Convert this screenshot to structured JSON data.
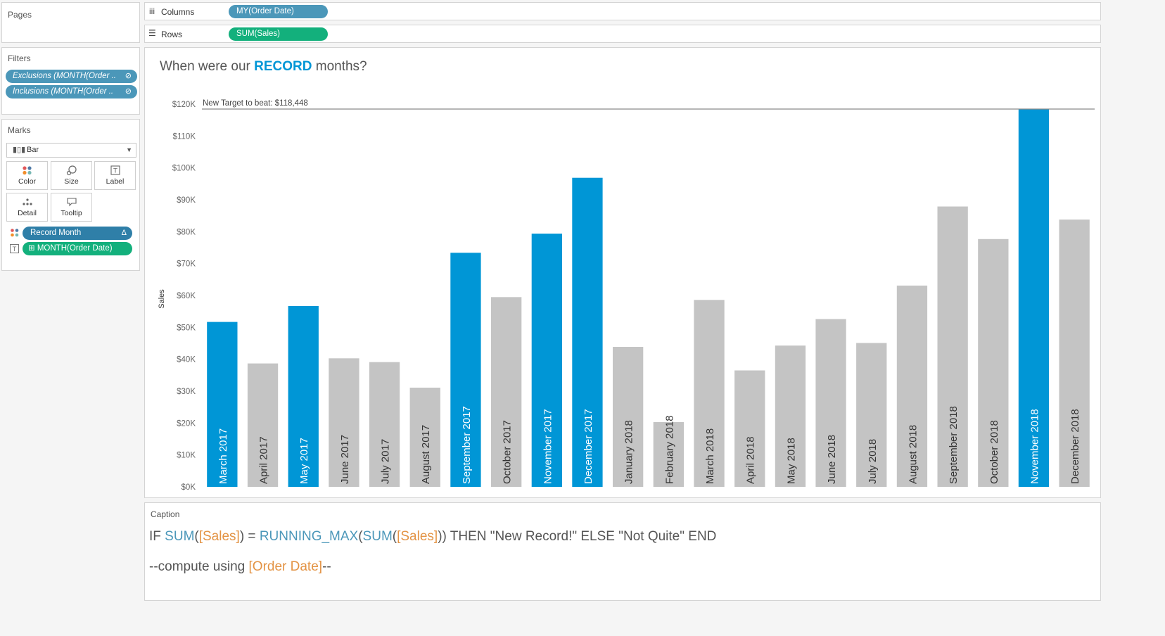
{
  "shelves": {
    "pages_label": "Pages",
    "columns_label": "Columns",
    "columns_pill": "MY(Order Date)",
    "rows_label": "Rows",
    "rows_pill": "SUM(Sales)",
    "columns_icon": "columns-shelf-icon",
    "rows_icon": "rows-shelf-icon"
  },
  "filters": {
    "title": "Filters",
    "items": [
      {
        "label": "Exclusions (MONTH(Order ..",
        "icon": "link-icon"
      },
      {
        "label": "Inclusions (MONTH(Order ..",
        "icon": "link-icon"
      }
    ]
  },
  "marks": {
    "title": "Marks",
    "mark_type": "Bar",
    "buttons": [
      {
        "label": "Color",
        "icon": "color-dots-icon"
      },
      {
        "label": "Size",
        "icon": "size-icon"
      },
      {
        "label": "Label",
        "icon": "label-icon"
      },
      {
        "label": "Detail",
        "icon": "detail-icon"
      },
      {
        "label": "Tooltip",
        "icon": "tooltip-icon"
      }
    ],
    "fields": [
      {
        "label": "Record Month",
        "badge": "Δ",
        "color": "#2f7fa8"
      },
      {
        "label": "MONTH(Order Date)",
        "badge": "⊞",
        "color": "#13b07c"
      }
    ]
  },
  "sheet": {
    "title_prefix": "When were our ",
    "title_accent": "RECORD",
    "title_suffix": " months?"
  },
  "caption": {
    "title": "Caption",
    "line1": [
      {
        "t": "IF ",
        "k": "plain"
      },
      {
        "t": "SUM",
        "k": "fn"
      },
      {
        "t": "(",
        "k": "plain"
      },
      {
        "t": "[Sales]",
        "k": "field"
      },
      {
        "t": ") = ",
        "k": "plain"
      },
      {
        "t": "RUNNING_MAX",
        "k": "fn"
      },
      {
        "t": "(",
        "k": "plain"
      },
      {
        "t": "SUM",
        "k": "fn"
      },
      {
        "t": "(",
        "k": "plain"
      },
      {
        "t": "[Sales]",
        "k": "field"
      },
      {
        "t": ")) THEN \"New Record!\" ELSE \"Not Quite\" END",
        "k": "plain"
      }
    ],
    "line2": [
      {
        "t": "--compute using ",
        "k": "plain"
      },
      {
        "t": "[Order Date]",
        "k": "field"
      },
      {
        "t": "--",
        "k": "plain"
      }
    ]
  },
  "colors": {
    "record": "#0096d6",
    "not_record": "#c4c4c4",
    "caption_function": "#4b97b9",
    "caption_field": "#e39344"
  },
  "chart_data": {
    "type": "bar",
    "ylabel": "Sales",
    "ylim": [
      0,
      120000
    ],
    "yticks": [
      0,
      10000,
      20000,
      30000,
      40000,
      50000,
      60000,
      70000,
      80000,
      90000,
      100000,
      110000,
      120000
    ],
    "ytick_labels": [
      "$0K",
      "$10K",
      "$20K",
      "$30K",
      "$40K",
      "$50K",
      "$60K",
      "$70K",
      "$80K",
      "$90K",
      "$100K",
      "$110K",
      "$120K"
    ],
    "reference_line": {
      "value": 118448,
      "label": "New Target to beat: $118,448"
    },
    "grid": false,
    "categories": [
      "March 2017",
      "April 2017",
      "May 2017",
      "June 2017",
      "July 2017",
      "August 2017",
      "September 2017",
      "October 2017",
      "November 2017",
      "December 2017",
      "January 2018",
      "February 2018",
      "March 2018",
      "April 2018",
      "May 2018",
      "June 2018",
      "July 2018",
      "August 2018",
      "September 2018",
      "October 2018",
      "November 2018",
      "December 2018"
    ],
    "values": [
      51700,
      38700,
      56700,
      40300,
      39100,
      31100,
      73400,
      59500,
      79400,
      96900,
      43900,
      20300,
      58600,
      36500,
      44300,
      52600,
      45100,
      63100,
      87900,
      77700,
      118448,
      83800
    ],
    "record_month": [
      true,
      false,
      true,
      false,
      false,
      false,
      true,
      false,
      true,
      true,
      false,
      false,
      false,
      false,
      false,
      false,
      false,
      false,
      false,
      false,
      true,
      false
    ]
  }
}
